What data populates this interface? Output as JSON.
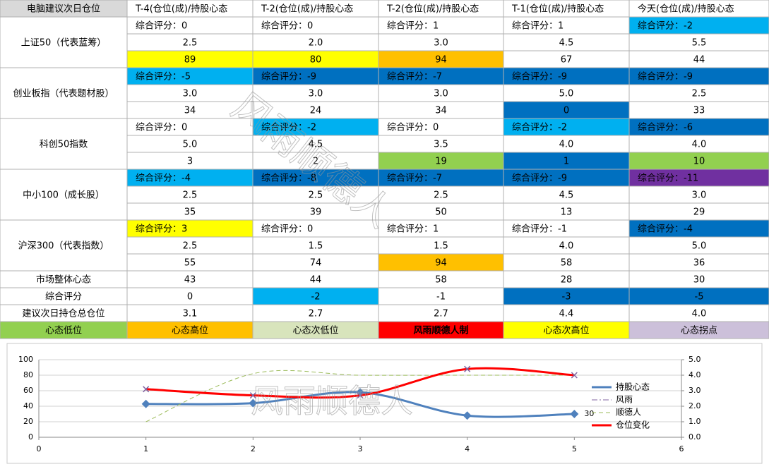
{
  "table": {
    "header": [
      "电脑建议次日仓位",
      "T-4(仓位(成)/持股心态",
      "T-2(仓位(成)/持股心态",
      "T-2(仓位(成)/持股心态",
      "T-1(仓位(成)/持股心态",
      "今天(仓位(成)/持股心态"
    ],
    "groups": [
      {
        "label": "上证50（代表蓝筹）",
        "rows": [
          [
            {
              "text": "综合评分：0"
            },
            {
              "text": "综合评分：0"
            },
            {
              "text": "综合评分：1"
            },
            {
              "text": "综合评分：1"
            },
            {
              "text": "综合评分：-2",
              "fill": "#00b0f0"
            }
          ],
          [
            {
              "text": "2.5"
            },
            {
              "text": "2.0"
            },
            {
              "text": "3.0"
            },
            {
              "text": "4.5"
            },
            {
              "text": "5.5"
            }
          ],
          [
            {
              "text": "89",
              "fill": "#ffff00"
            },
            {
              "text": "80",
              "fill": "#ffff00"
            },
            {
              "text": "94",
              "fill": "#ffc000"
            },
            {
              "text": "67"
            },
            {
              "text": "44"
            }
          ]
        ]
      },
      {
        "label": "创业板指（代表题材股）",
        "rows": [
          [
            {
              "text": "综合评分：-5",
              "fill": "#00b0f0"
            },
            {
              "text": "综合评分：-9",
              "fill": "#0070c0"
            },
            {
              "text": "综合评分：-7",
              "fill": "#0070c0"
            },
            {
              "text": "综合评分：-9",
              "fill": "#0070c0"
            },
            {
              "text": "综合评分：-9",
              "fill": "#0070c0"
            }
          ],
          [
            {
              "text": "3.0"
            },
            {
              "text": "3.0"
            },
            {
              "text": "3.0"
            },
            {
              "text": "5.0"
            },
            {
              "text": "2.5"
            }
          ],
          [
            {
              "text": "34"
            },
            {
              "text": "24"
            },
            {
              "text": "34"
            },
            {
              "text": "0",
              "fill": "#0070c0"
            },
            {
              "text": "33"
            }
          ]
        ]
      },
      {
        "label": "科创50指数",
        "rows": [
          [
            {
              "text": "综合评分：0"
            },
            {
              "text": "综合评分：-2",
              "fill": "#00b0f0"
            },
            {
              "text": "综合评分：0"
            },
            {
              "text": "综合评分：-2",
              "fill": "#00b0f0"
            },
            {
              "text": "综合评分：-6",
              "fill": "#0070c0"
            }
          ],
          [
            {
              "text": "5.0"
            },
            {
              "text": "4.5"
            },
            {
              "text": "3.5"
            },
            {
              "text": "4.0"
            },
            {
              "text": "4.0"
            }
          ],
          [
            {
              "text": "3"
            },
            {
              "text": "2"
            },
            {
              "text": "19",
              "fill": "#92d050"
            },
            {
              "text": "1",
              "fill": "#0070c0"
            },
            {
              "text": "10",
              "fill": "#92d050"
            }
          ]
        ]
      },
      {
        "label": "中小100（成长股）",
        "rows": [
          [
            {
              "text": "综合评分：-4",
              "fill": "#00b0f0"
            },
            {
              "text": "综合评分：-8",
              "fill": "#0070c0"
            },
            {
              "text": "综合评分：-7",
              "fill": "#0070c0"
            },
            {
              "text": "综合评分：-9",
              "fill": "#0070c0"
            },
            {
              "text": "综合评分：-11",
              "fill": "#7030a0"
            }
          ],
          [
            {
              "text": "2.5"
            },
            {
              "text": "2.5"
            },
            {
              "text": "2.5"
            },
            {
              "text": "4.5"
            },
            {
              "text": "3.0"
            }
          ],
          [
            {
              "text": "35"
            },
            {
              "text": "39"
            },
            {
              "text": "50"
            },
            {
              "text": "13"
            },
            {
              "text": "29"
            }
          ]
        ]
      },
      {
        "label": "沪深300（代表指数）",
        "rows": [
          [
            {
              "text": "综合评分：3",
              "fill": "#ffff00"
            },
            {
              "text": "综合评分：0"
            },
            {
              "text": "综合评分：1"
            },
            {
              "text": "综合评分：-1"
            },
            {
              "text": "综合评分：-4",
              "fill": "#0070c0"
            }
          ],
          [
            {
              "text": "2.5"
            },
            {
              "text": "1.5"
            },
            {
              "text": "1.5"
            },
            {
              "text": "4.0"
            },
            {
              "text": "5.0"
            }
          ],
          [
            {
              "text": "55"
            },
            {
              "text": "74"
            },
            {
              "text": "94",
              "fill": "#ffc000"
            },
            {
              "text": "58"
            },
            {
              "text": "36"
            }
          ]
        ]
      }
    ],
    "summary": [
      {
        "label": "市场整体心态",
        "cells": [
          {
            "text": "43"
          },
          {
            "text": "44"
          },
          {
            "text": "58"
          },
          {
            "text": "28"
          },
          {
            "text": "30"
          }
        ]
      },
      {
        "label": "综合评分",
        "cells": [
          {
            "text": "0"
          },
          {
            "text": "-2",
            "fill": "#00b0f0"
          },
          {
            "text": "-1"
          },
          {
            "text": "-3",
            "fill": "#0070c0"
          },
          {
            "text": "-5",
            "fill": "#0070c0"
          }
        ]
      },
      {
        "label": "建议次日持仓总仓位",
        "cells": [
          {
            "text": "3.1"
          },
          {
            "text": "2.7"
          },
          {
            "text": "2.7"
          },
          {
            "text": "4.4"
          },
          {
            "text": "4.0"
          }
        ]
      }
    ],
    "legend": [
      {
        "text": "心态低位",
        "fill": "#92d050"
      },
      {
        "text": "心态高位",
        "fill": "#ffc000"
      },
      {
        "text": "心态次低位",
        "fill": "#d8e4bc"
      },
      {
        "text": "风雨顺德人制",
        "fill": "#ff0000",
        "bold": true
      },
      {
        "text": "心态次高位",
        "fill": "#ffff00"
      },
      {
        "text": "心态拐点",
        "fill": "#ccc0da"
      }
    ]
  },
  "watermark": "风雨顺德人",
  "chart_data": {
    "type": "line",
    "x": [
      1,
      2,
      3,
      4,
      5
    ],
    "xlim": [
      0,
      6
    ],
    "xticks": [
      0,
      1,
      2,
      3,
      4,
      5,
      6
    ],
    "ylim": [
      0,
      100
    ],
    "yticks": [
      0,
      20,
      40,
      60,
      80,
      100
    ],
    "y2lim": [
      0,
      5
    ],
    "y2ticks": [
      {
        "value": 0,
        "label": "0.0"
      },
      {
        "value": 1,
        "label": "1.0"
      },
      {
        "value": 2,
        "label": "2.0"
      },
      {
        "value": 3,
        "label": "3.0"
      },
      {
        "value": 4,
        "label": "4.0"
      },
      {
        "value": 5,
        "label": "5.0"
      }
    ],
    "grid": true,
    "smooth": true,
    "series": [
      {
        "name": "持股心态",
        "color": "#4f81bd",
        "values": [
          43,
          44,
          58,
          28,
          30
        ],
        "marker": "diamond",
        "dash": "solid",
        "width": 3,
        "label_last": true
      },
      {
        "name": "风雨",
        "color": "#8064a2",
        "values": [
          null,
          null,
          null,
          null,
          null
        ],
        "dash": "dash-dot",
        "width": 1,
        "axis": "y2"
      },
      {
        "name": "顺德人",
        "color": "#9bbb59",
        "values": [
          1.0,
          4.1,
          4.0,
          4.0,
          4.0
        ],
        "dash": "dash",
        "width": 1,
        "axis": "y2"
      },
      {
        "name": "仓位变化",
        "color": "#ff0000",
        "values": [
          3.1,
          2.7,
          2.7,
          4.4,
          4.0
        ],
        "marker": "x",
        "dash": "solid",
        "width": 3,
        "axis": "y2"
      }
    ]
  }
}
